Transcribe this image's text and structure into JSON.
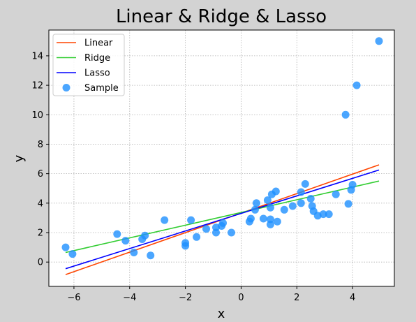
{
  "chart_data": {
    "type": "scatter",
    "title": "Linear & Ridge & Lasso",
    "xlabel": "x",
    "ylabel": "y",
    "xlim": [
      -6.9,
      5.5
    ],
    "ylim": [
      -1.65,
      15.75
    ],
    "xticks": [
      -6,
      -4,
      -2,
      0,
      2,
      4
    ],
    "yticks": [
      0,
      2,
      4,
      6,
      8,
      10,
      12,
      14
    ],
    "grid": true,
    "grid_style": "dotted",
    "legend_position": "top-left",
    "series": [
      {
        "name": "Linear",
        "kind": "line",
        "color": "#ff4500",
        "x": [
          -6.3,
          4.95
        ],
        "y": [
          -0.85,
          6.6
        ]
      },
      {
        "name": "Ridge",
        "kind": "line",
        "color": "#32cd32",
        "x": [
          -6.3,
          4.95
        ],
        "y": [
          0.65,
          5.5
        ]
      },
      {
        "name": "Lasso",
        "kind": "line",
        "color": "#0000ff",
        "x": [
          -6.3,
          4.95
        ],
        "y": [
          -0.45,
          6.25
        ]
      },
      {
        "name": "Sample",
        "kind": "scatter",
        "color": "#1e90ff",
        "points": [
          [
            -6.3,
            1.0
          ],
          [
            -6.05,
            0.55
          ],
          [
            -4.45,
            1.9
          ],
          [
            -4.15,
            1.45
          ],
          [
            -3.85,
            0.65
          ],
          [
            -3.55,
            1.55
          ],
          [
            -3.45,
            1.8
          ],
          [
            -3.25,
            0.45
          ],
          [
            -2.75,
            2.85
          ],
          [
            -2.0,
            1.1
          ],
          [
            -2.0,
            1.3
          ],
          [
            -1.8,
            2.85
          ],
          [
            -1.6,
            1.7
          ],
          [
            -1.25,
            2.25
          ],
          [
            -0.9,
            2.0
          ],
          [
            -0.9,
            2.35
          ],
          [
            -0.7,
            2.45
          ],
          [
            -0.65,
            2.65
          ],
          [
            -0.35,
            2.0
          ],
          [
            0.3,
            2.75
          ],
          [
            0.35,
            2.95
          ],
          [
            0.5,
            3.55
          ],
          [
            0.55,
            4.0
          ],
          [
            0.8,
            2.95
          ],
          [
            0.95,
            4.2
          ],
          [
            1.05,
            2.55
          ],
          [
            1.05,
            2.9
          ],
          [
            1.05,
            3.7
          ],
          [
            1.1,
            4.6
          ],
          [
            1.25,
            4.8
          ],
          [
            1.3,
            2.75
          ],
          [
            1.55,
            3.55
          ],
          [
            1.85,
            3.8
          ],
          [
            2.15,
            4.0
          ],
          [
            2.15,
            4.75
          ],
          [
            2.3,
            5.3
          ],
          [
            2.5,
            4.3
          ],
          [
            2.55,
            3.8
          ],
          [
            2.6,
            3.45
          ],
          [
            2.75,
            3.15
          ],
          [
            2.95,
            3.25
          ],
          [
            3.15,
            3.25
          ],
          [
            3.4,
            4.6
          ],
          [
            3.75,
            10.0
          ],
          [
            3.85,
            3.95
          ],
          [
            3.95,
            4.9
          ],
          [
            4.0,
            5.25
          ],
          [
            4.15,
            12.0
          ],
          [
            4.95,
            15.0
          ]
        ]
      }
    ]
  }
}
